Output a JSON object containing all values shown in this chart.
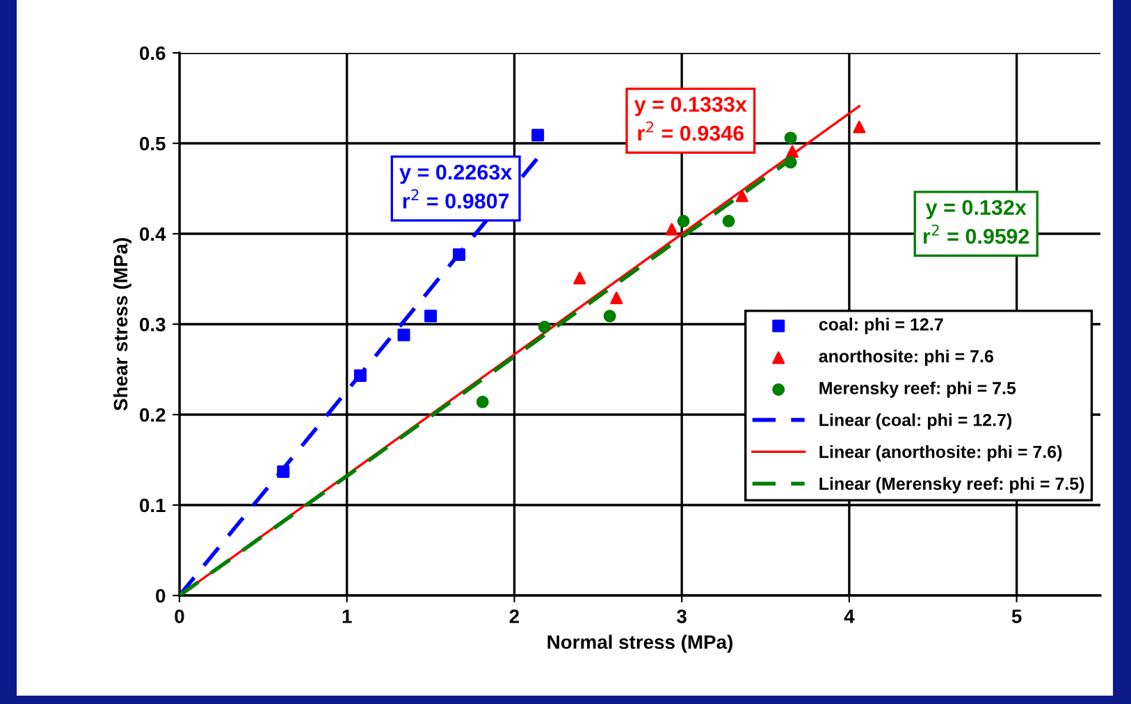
{
  "chart_data": {
    "type": "scatter",
    "xlabel": "Normal stress (MPa)",
    "ylabel": "Shear stress (MPa)",
    "xlim": [
      0,
      5.5
    ],
    "xticks": [
      0,
      1,
      2,
      3,
      4,
      5
    ],
    "ylim": [
      0,
      0.6
    ],
    "yticks": [
      0,
      0.1,
      0.2,
      0.3,
      0.4,
      0.5,
      0.6
    ],
    "grid": true,
    "legend": "right",
    "series": [
      {
        "name": "coal: phi = 12.7",
        "marker": "square",
        "color": "#0000ff",
        "x": [
          0.62,
          1.08,
          1.34,
          1.5,
          1.67,
          2.14
        ],
        "values": [
          0.137,
          0.243,
          0.288,
          0.309,
          0.377,
          0.509
        ]
      },
      {
        "name": "anorthosite: phi = 7.6",
        "marker": "triangle",
        "color": "#ff0000",
        "x": [
          2.39,
          2.61,
          2.94,
          3.36,
          3.66,
          4.06
        ],
        "values": [
          0.351,
          0.329,
          0.405,
          0.442,
          0.491,
          0.518
        ]
      },
      {
        "name": "Merensky reef: phi = 7.5",
        "marker": "circle",
        "color": "#008000",
        "x": [
          1.81,
          2.18,
          2.57,
          3.01,
          3.28,
          3.65,
          3.65
        ],
        "values": [
          0.214,
          0.297,
          0.309,
          0.414,
          0.414,
          0.506,
          0.479
        ]
      },
      {
        "name": "Linear (coal: phi = 12.7)",
        "type": "line",
        "line_style": "dashed",
        "color": "#0000ff",
        "x": [
          0,
          2.14
        ],
        "values": [
          0,
          0.484
        ]
      },
      {
        "name": "Linear (anorthosite: phi = 7.6)",
        "type": "line",
        "line_style": "solid",
        "color": "#ff0000",
        "x": [
          0,
          4.06
        ],
        "values": [
          0,
          0.541
        ]
      },
      {
        "name": "Linear (Merensky reef: phi = 7.5)",
        "type": "line",
        "line_style": "dashed",
        "color": "#008000",
        "x": [
          0,
          3.65
        ],
        "values": [
          0,
          0.482
        ]
      }
    ],
    "annotations": [
      "y = 0.2263x\nr$^{2}$ = 0.9807",
      "y = 0.1333x\nr$^{2}$ = 0.9346",
      "y = 0.132x\nr$^{2}$ = 0.9592"
    ]
  }
}
